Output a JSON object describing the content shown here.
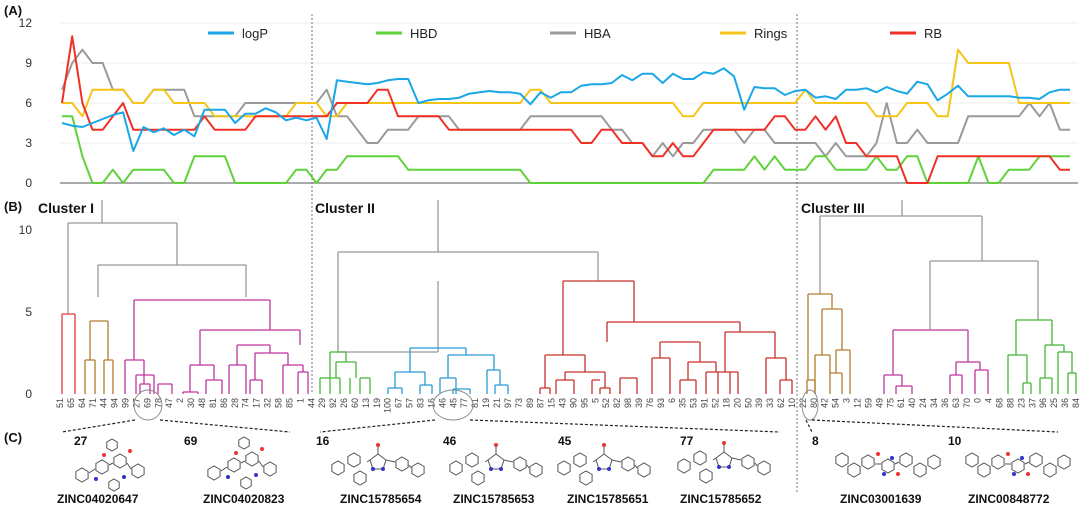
{
  "panel_labels": {
    "a": "(A)",
    "b": "(B)",
    "c": "(C)"
  },
  "chart_data": [
    {
      "type": "line",
      "panel": "(A)",
      "ylim": [
        0,
        12
      ],
      "yticks": [
        "0",
        "3",
        "6",
        "9",
        "12"
      ],
      "n_points": 100,
      "legend_position": "top",
      "series": [
        {
          "name": "logP",
          "color": "#1aa7e8",
          "values": [
            4.5,
            4.3,
            4.2,
            4.5,
            4.8,
            5.1,
            5.3,
            2.4,
            4.2,
            3.8,
            4.1,
            3.6,
            4.0,
            3.5,
            5.5,
            5.5,
            5.5,
            4.5,
            5.2,
            5.2,
            5.6,
            5.3,
            4.7,
            4.9,
            4.7,
            4.9,
            3.3,
            7.7,
            7.6,
            7.5,
            7.4,
            7.5,
            7.7,
            7.8,
            7.8,
            6.0,
            6.2,
            6.3,
            6.3,
            6.4,
            6.7,
            6.8,
            6.9,
            6.8,
            6.8,
            6.7,
            5.9,
            6.8,
            6.4,
            6.8,
            6.8,
            7.3,
            7.4,
            7.4,
            7.5,
            8.1,
            7.7,
            8.2,
            8.2,
            7.5,
            8.2,
            7.8,
            7.8,
            8.3,
            8.2,
            8.6,
            8.0,
            5.5,
            7.2,
            7.1,
            7.1,
            6.6,
            6.9,
            7.0,
            6.4,
            6.5,
            6.3,
            7.0,
            7.0,
            7.1,
            6.8,
            7.2,
            6.9,
            6.7,
            7.6,
            7.4,
            6.2,
            6.7,
            7.3,
            6.5,
            6.5,
            6.5,
            6.5,
            6.5,
            6.4,
            6.4,
            6.3,
            6.8,
            7.0,
            7.0
          ]
        },
        {
          "name": "HBD",
          "color": "#5fd23a",
          "values": [
            5,
            5,
            2,
            0,
            0,
            1,
            0,
            1,
            1,
            1,
            1,
            0,
            0,
            2,
            2,
            2,
            2,
            0,
            0,
            0,
            0,
            0,
            0,
            1,
            1,
            0,
            1,
            1,
            2,
            2,
            2,
            2,
            2,
            2,
            1,
            1,
            1,
            1,
            1,
            1,
            1,
            1,
            1,
            1,
            1,
            1,
            0,
            0,
            0,
            0,
            0,
            0,
            0,
            0,
            0,
            0,
            0,
            0,
            0,
            0,
            0,
            0,
            0,
            0,
            1,
            1,
            1,
            1,
            2,
            1,
            2,
            1,
            1,
            1,
            2,
            2,
            1,
            1,
            1,
            1,
            2,
            1,
            1,
            2,
            2,
            0,
            0,
            0,
            0,
            0,
            2,
            0,
            0,
            1,
            1,
            1,
            2,
            2,
            2,
            2
          ]
        },
        {
          "name": "HBA",
          "color": "#9a9a9a",
          "values": [
            7,
            9,
            10,
            9,
            9,
            7,
            7,
            6,
            6,
            7,
            7,
            7,
            7,
            5,
            5,
            5,
            5,
            5,
            6,
            6,
            6,
            6,
            6,
            6,
            6,
            6,
            7,
            5,
            5,
            4,
            3,
            3,
            4,
            4,
            4,
            5,
            5,
            5,
            5,
            4,
            4,
            4,
            4,
            4,
            4,
            4,
            5,
            5,
            5,
            5,
            5,
            5,
            5,
            5,
            4,
            4,
            3,
            3,
            2,
            3,
            2,
            3,
            3,
            4,
            4,
            4,
            4,
            3,
            4,
            4,
            3,
            3,
            3,
            3,
            3,
            2,
            3,
            2,
            2,
            2,
            3,
            6,
            3,
            3,
            4,
            3,
            3,
            3,
            3,
            5,
            5,
            5,
            5,
            5,
            5,
            6,
            5,
            6,
            4,
            4
          ]
        },
        {
          "name": "Rings",
          "color": "#f5c518",
          "values": [
            6,
            6,
            5,
            7,
            7,
            7,
            7,
            6,
            6,
            7,
            7,
            6,
            6,
            6,
            6,
            5,
            5,
            5,
            5,
            5,
            5,
            5,
            5,
            6,
            6,
            6,
            5,
            5,
            6,
            6,
            6,
            6,
            6,
            6,
            6,
            6,
            6,
            6,
            6,
            6,
            6,
            6,
            6,
            6,
            6,
            6,
            7,
            7,
            6,
            6,
            6,
            6,
            6,
            6,
            6,
            6,
            6,
            6,
            6,
            6,
            6,
            5,
            5,
            6,
            6,
            6,
            6,
            6,
            6,
            6,
            6,
            6,
            6,
            7,
            6,
            6,
            6,
            6,
            6,
            6,
            5,
            5,
            5,
            6,
            6,
            6,
            5,
            5,
            10,
            9,
            9,
            9,
            9,
            9,
            6,
            6,
            6,
            6,
            6,
            6
          ]
        },
        {
          "name": "RB",
          "color": "#ef3027",
          "values": [
            6,
            11,
            6,
            4,
            4,
            5,
            6,
            4,
            4,
            4,
            4,
            4,
            4,
            4,
            5,
            4,
            4,
            4,
            4,
            5,
            5,
            5,
            5,
            5,
            5,
            5,
            5,
            6,
            6,
            6,
            6,
            7,
            7,
            5,
            5,
            5,
            5,
            5,
            4,
            4,
            4,
            4,
            4,
            4,
            4,
            4,
            4,
            4,
            4,
            4,
            4,
            3,
            3,
            4,
            4,
            3,
            3,
            3,
            2,
            2,
            3,
            2,
            2,
            3,
            4,
            4,
            4,
            4,
            4,
            4,
            5,
            5,
            4,
            4,
            5,
            4,
            5,
            3,
            3,
            2,
            2,
            2,
            2,
            0,
            0,
            0,
            2,
            2,
            2,
            2,
            2,
            2,
            2,
            2,
            2,
            2,
            2,
            2,
            1,
            1
          ]
        }
      ]
    },
    {
      "type": "dendrogram",
      "panel": "(B)",
      "ylim": [
        0,
        13
      ],
      "yticks": [
        "0",
        "5",
        "10"
      ],
      "clusters": [
        "Cluster I",
        "Cluster II",
        "Cluster III"
      ],
      "leaves": [
        "51",
        "65",
        "64",
        "71",
        "44",
        "94",
        "99",
        "27",
        "69",
        "78",
        "47",
        "2",
        "30",
        "48",
        "81",
        "86",
        "28",
        "74",
        "17",
        "32",
        "58",
        "85",
        "1",
        "44",
        "29",
        "92",
        "26",
        "60",
        "13",
        "19",
        "100",
        "67",
        "57",
        "83",
        "16",
        "46",
        "45",
        "77",
        "81",
        "19",
        "21",
        "97",
        "73",
        "89",
        "87",
        "15",
        "43",
        "90",
        "95",
        "5",
        "52",
        "82",
        "98",
        "39",
        "76",
        "93",
        "6",
        "35",
        "53",
        "91",
        "52",
        "18",
        "20",
        "50",
        "39",
        "33",
        "62",
        "10",
        "22",
        "80",
        "42",
        "54",
        "3",
        "12",
        "59",
        "49",
        "75",
        "61",
        "40",
        "24",
        "34",
        "36",
        "63",
        "70",
        "0",
        "4",
        "68",
        "88",
        "23",
        "37",
        "96",
        "25",
        "36",
        "84"
      ]
    }
  ],
  "panel_c": {
    "groups": [
      {
        "labels": [
          "27",
          "69"
        ],
        "zinc": [
          "ZINC04020647",
          "ZINC04020823"
        ]
      },
      {
        "labels": [
          "16",
          "46",
          "45",
          "77"
        ],
        "zinc": [
          "ZINC15785654",
          "ZINC15785653",
          "ZINC15785651",
          "ZINC15785652"
        ]
      },
      {
        "labels": [
          "8",
          "10"
        ],
        "zinc": [
          "ZINC03001639",
          "ZINC00848772"
        ]
      }
    ]
  }
}
